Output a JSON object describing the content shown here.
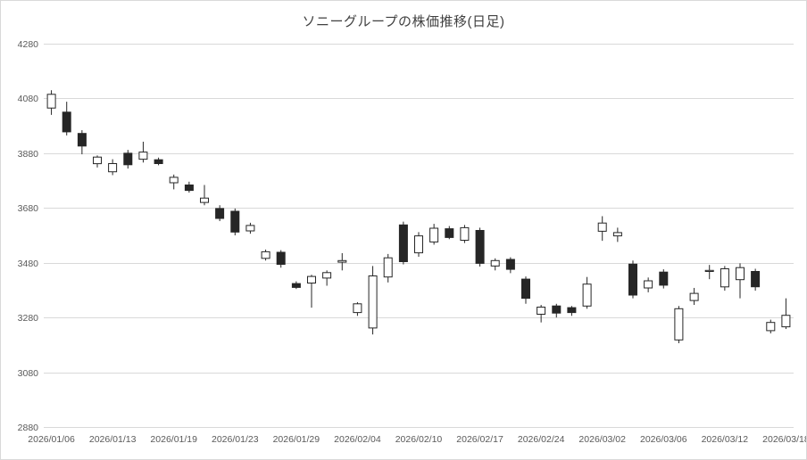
{
  "title": "ソニーグループの株価推移(日足)",
  "colors": {
    "up_fill": "#ffffff",
    "down_fill": "#262626",
    "candle_stroke": "#262626",
    "grid": "#d9d9d9",
    "axis_text": "#595959",
    "title_text": "#404040",
    "background": "#ffffff"
  },
  "chart_data": {
    "type": "candlestick",
    "title": "ソニーグループの株価推移(日足)",
    "ylabel": "",
    "xlabel": "",
    "ylim": [
      2880,
      4280
    ],
    "y_step": 200,
    "grid": true,
    "legend": "none",
    "x_tick_every": 4,
    "y_ticks": [
      2880,
      3080,
      3280,
      3480,
      3680,
      3880,
      4080,
      4280
    ],
    "x_tick_labels": [
      "2026/01/06",
      "2026/01/13",
      "2026/01/19",
      "2026/01/23",
      "2026/01/29",
      "2026/02/04",
      "2026/02/10",
      "2026/02/17",
      "2026/02/24",
      "2026/03/02",
      "2026/03/06",
      "2026/03/12",
      "2026/03/18"
    ],
    "dates": [
      "2026/01/06",
      "2026/01/07",
      "2026/01/08",
      "2026/01/09",
      "2026/01/13",
      "2026/01/14",
      "2026/01/15",
      "2026/01/16",
      "2026/01/19",
      "2026/01/20",
      "2026/01/21",
      "2026/01/22",
      "2026/01/23",
      "2026/01/26",
      "2026/01/27",
      "2026/01/28",
      "2026/01/29",
      "2026/01/30",
      "2026/02/02",
      "2026/02/03",
      "2026/02/04",
      "2026/02/05",
      "2026/02/06",
      "2026/02/09",
      "2026/02/10",
      "2026/02/12",
      "2026/02/13",
      "2026/02/16",
      "2026/02/17",
      "2026/02/18",
      "2026/02/19",
      "2026/02/20",
      "2026/02/24",
      "2026/02/25",
      "2026/02/26",
      "2026/02/27",
      "2026/03/02",
      "2026/03/03",
      "2026/03/04",
      "2026/03/05",
      "2026/03/06",
      "2026/03/09",
      "2026/03/10",
      "2026/03/11",
      "2026/03/12",
      "2026/03/13",
      "2026/03/16",
      "2026/03/17",
      "2026/03/18"
    ],
    "ohlc": [
      [
        4045,
        4110,
        4020,
        4095
      ],
      [
        4030,
        4068,
        3945,
        3958
      ],
      [
        3952,
        3964,
        3876,
        3906
      ],
      [
        3842,
        3872,
        3828,
        3866
      ],
      [
        3812,
        3858,
        3800,
        3842
      ],
      [
        3880,
        3892,
        3824,
        3838
      ],
      [
        3858,
        3922,
        3846,
        3884
      ],
      [
        3856,
        3864,
        3836,
        3842
      ],
      [
        3772,
        3802,
        3748,
        3792
      ],
      [
        3764,
        3776,
        3736,
        3744
      ],
      [
        3700,
        3764,
        3690,
        3716
      ],
      [
        3678,
        3690,
        3632,
        3642
      ],
      [
        3668,
        3678,
        3580,
        3592
      ],
      [
        3596,
        3626,
        3586,
        3616
      ],
      [
        3496,
        3528,
        3488,
        3520
      ],
      [
        3518,
        3526,
        3462,
        3474
      ],
      [
        3404,
        3412,
        3384,
        3390
      ],
      [
        3406,
        3436,
        3316,
        3430
      ],
      [
        3424,
        3452,
        3396,
        3444
      ],
      [
        3482,
        3515,
        3452,
        3488
      ],
      [
        3298,
        3336,
        3286,
        3330
      ],
      [
        3242,
        3468,
        3218,
        3432
      ],
      [
        3428,
        3512,
        3408,
        3498
      ],
      [
        3618,
        3630,
        3474,
        3484
      ],
      [
        3516,
        3592,
        3502,
        3578
      ],
      [
        3556,
        3622,
        3546,
        3606
      ],
      [
        3604,
        3614,
        3566,
        3572
      ],
      [
        3562,
        3618,
        3552,
        3608
      ],
      [
        3598,
        3608,
        3466,
        3478
      ],
      [
        3468,
        3496,
        3452,
        3488
      ],
      [
        3492,
        3500,
        3442,
        3456
      ],
      [
        3420,
        3430,
        3330,
        3350
      ],
      [
        3292,
        3326,
        3262,
        3318
      ],
      [
        3322,
        3330,
        3280,
        3296
      ],
      [
        3316,
        3322,
        3286,
        3298
      ],
      [
        3322,
        3428,
        3312,
        3402
      ],
      [
        3595,
        3650,
        3560,
        3625
      ],
      [
        3578,
        3608,
        3556,
        3590
      ],
      [
        3475,
        3488,
        3350,
        3362
      ],
      [
        3388,
        3426,
        3372,
        3414
      ],
      [
        3446,
        3456,
        3386,
        3398
      ],
      [
        3198,
        3322,
        3186,
        3312
      ],
      [
        3342,
        3388,
        3326,
        3368
      ],
      [
        3448,
        3472,
        3420,
        3452
      ],
      [
        3392,
        3468,
        3378,
        3458
      ],
      [
        3418,
        3478,
        3350,
        3462
      ],
      [
        3448,
        3458,
        3378,
        3392
      ],
      [
        3232,
        3272,
        3222,
        3262
      ],
      [
        3246,
        3350,
        3238,
        3288
      ]
    ]
  }
}
